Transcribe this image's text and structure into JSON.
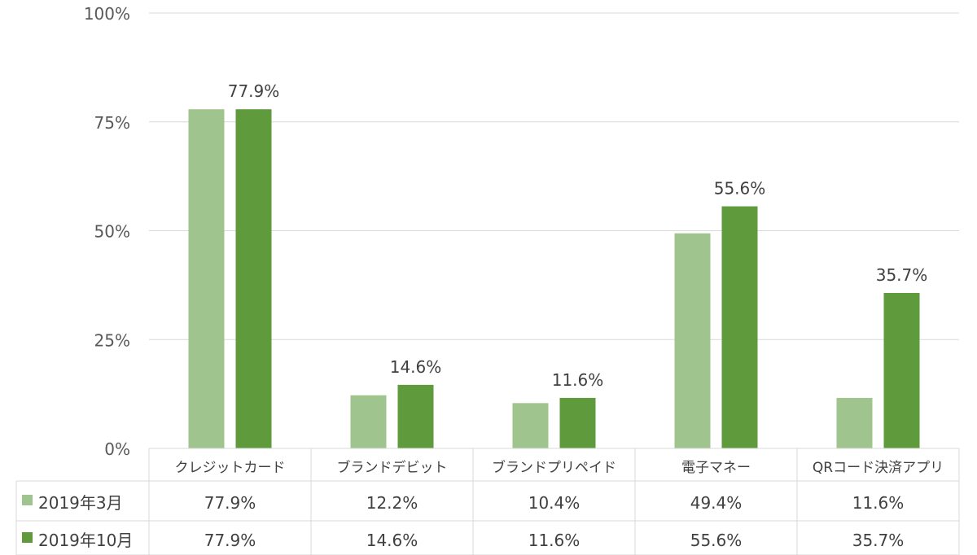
{
  "chart_data": {
    "type": "bar",
    "categories": [
      "クレジットカード",
      "ブランドデビット",
      "ブランドプリペイド",
      "電子マネー",
      "QRコード決済アプリ"
    ],
    "series": [
      {
        "name": "2019年3月",
        "values": [
          77.9,
          12.2,
          10.4,
          49.4,
          11.6
        ],
        "color": "#a0c48e",
        "table_labels": [
          "77.9%",
          "12.2%",
          "10.4%",
          "49.4%",
          "11.6%"
        ]
      },
      {
        "name": "2019年10月",
        "values": [
          77.9,
          14.6,
          11.6,
          55.6,
          35.7
        ],
        "color": "#5f9a3c",
        "table_labels": [
          "77.9%",
          "14.6%",
          "11.6%",
          "55.6%",
          "35.7%"
        ]
      }
    ],
    "data_labels": [
      "77.9%",
      "14.6%",
      "11.6%",
      "55.6%",
      "35.7%"
    ],
    "yticks": [
      0,
      25,
      50,
      75,
      100
    ],
    "ytick_labels": [
      "0%",
      "25%",
      "50%",
      "75%",
      "100%"
    ],
    "ylim": [
      0,
      100
    ],
    "grid": true,
    "legend": "data-table"
  }
}
